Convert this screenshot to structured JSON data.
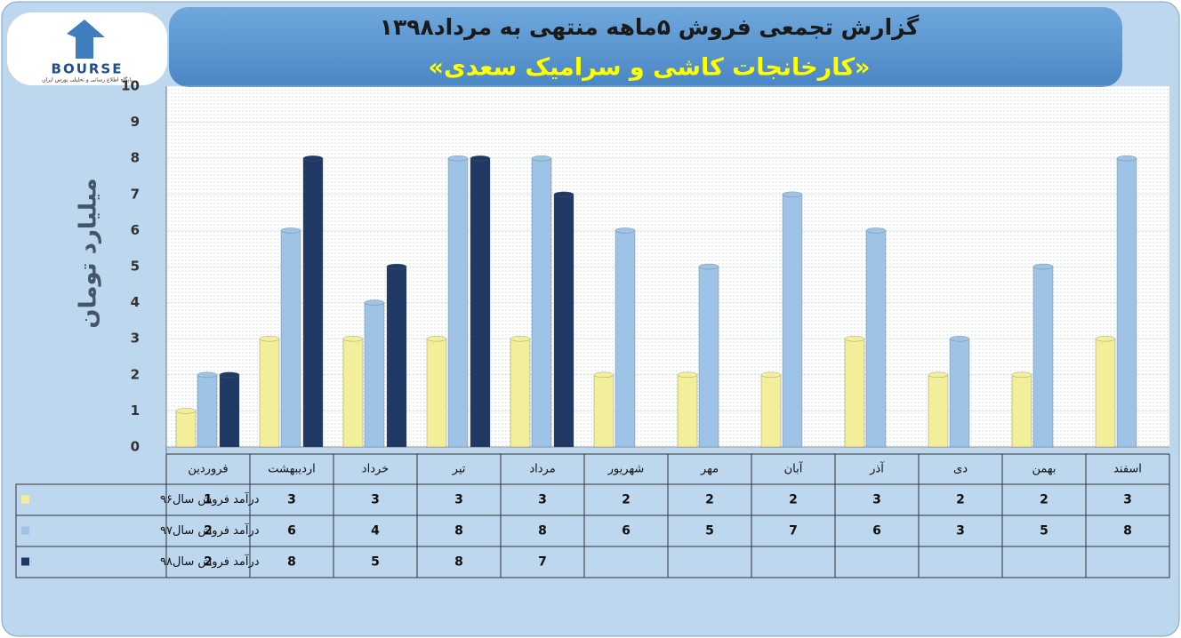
{
  "logo": {
    "text": "BOURSE",
    "tagline": "پایگاه اطلاع رسانی و تحلیلی بورس ایران"
  },
  "chart_data": {
    "type": "bar",
    "title": "گزارش تجمعی فروش ۵ماهه منتهی به مرداد۱۳۹۸",
    "subtitle": "«کارخانجات کاشی و سرامیک سعدی»",
    "y_label": "میلیارد تومان",
    "categories": [
      "فروردین",
      "اردیبهشت",
      "خرداد",
      "تیر",
      "مرداد",
      "شهریور",
      "مهر",
      "آبان",
      "آذر",
      "دی",
      "بهمن",
      "اسفند"
    ],
    "series": [
      {
        "name": "درآمد فروش سال۹۶",
        "color": "#f3ee9a",
        "values": [
          1,
          3,
          3,
          3,
          3,
          2,
          2,
          2,
          3,
          2,
          2,
          3
        ]
      },
      {
        "name": "درآمد فروش سال۹۷",
        "color": "#9dc3e6",
        "values": [
          2,
          6,
          4,
          8,
          8,
          6,
          5,
          7,
          6,
          3,
          5,
          8
        ]
      },
      {
        "name": "درآمد فروش سال۹۸",
        "color": "#1f3864",
        "values": [
          2,
          8,
          5,
          8,
          7,
          null,
          null,
          null,
          null,
          null,
          null,
          null
        ]
      }
    ],
    "ylim": [
      0,
      10
    ],
    "yticks": [
      0,
      1,
      2,
      3,
      4,
      5,
      6,
      7,
      8,
      9,
      10
    ],
    "grid": true
  }
}
